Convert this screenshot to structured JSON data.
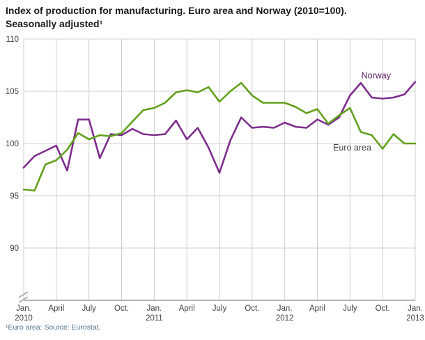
{
  "title": {
    "line1": "Index of production for manufacturing. Euro area and Norway (2010=100).",
    "line2": "Seasonally adjusted¹"
  },
  "footnote": "¹Euro area: Source: Eurostat.",
  "chart_data": {
    "type": "line",
    "title": "Index of production for manufacturing. Euro area and Norway (2010=100). Seasonally adjusted¹",
    "xlabel": "",
    "ylabel": "",
    "ylim": [
      85,
      110
    ],
    "y_ticks": [
      110,
      105,
      100,
      95,
      90
    ],
    "grid": true,
    "axis_break_at_bottom": true,
    "n_points": 37,
    "x_ticks": [
      {
        "month": "Jan.",
        "year": "2010"
      },
      {
        "month": "April",
        "year": ""
      },
      {
        "month": "July",
        "year": ""
      },
      {
        "month": "Oct.",
        "year": ""
      },
      {
        "month": "Jan.",
        "year": "2011"
      },
      {
        "month": "April",
        "year": ""
      },
      {
        "month": "July",
        "year": ""
      },
      {
        "month": "Oct.",
        "year": ""
      },
      {
        "month": "Jan.",
        "year": "2012"
      },
      {
        "month": "April",
        "year": ""
      },
      {
        "month": "July",
        "year": ""
      },
      {
        "month": "Oct.",
        "year": ""
      },
      {
        "month": "Jan.",
        "year": "2013"
      }
    ],
    "colors": {
      "grid": "#cfcfcf",
      "axis": "#8a8a8a",
      "tick_text": "#404040"
    },
    "series": [
      {
        "name": "Norway",
        "color": "#7d2d8c",
        "label": {
          "text": "Norway",
          "xi": 32.4,
          "y": 106.5,
          "color": "#5e2268"
        },
        "values": [
          97.7,
          98.8,
          99.3,
          99.8,
          97.4,
          102.3,
          102.3,
          98.6,
          100.9,
          100.8,
          101.4,
          100.9,
          100.8,
          100.9,
          102.2,
          100.4,
          101.5,
          99.6,
          97.2,
          100.3,
          102.5,
          101.5,
          101.6,
          101.5,
          102.0,
          101.6,
          101.5,
          102.3,
          101.8,
          102.5,
          104.6,
          105.8,
          104.4,
          104.3,
          104.4,
          104.7,
          105.9
        ]
      },
      {
        "name": "Euro area",
        "color": "#62a01c",
        "label": {
          "text": "Euro area",
          "xi": 30.2,
          "y": 99.6,
          "color": "#454545"
        },
        "values": [
          95.6,
          95.5,
          98.0,
          98.4,
          99.4,
          101.0,
          100.4,
          100.8,
          100.7,
          101.0,
          102.1,
          103.2,
          103.4,
          103.9,
          104.9,
          105.1,
          104.9,
          105.4,
          104.0,
          105.0,
          105.8,
          104.6,
          103.9,
          103.9,
          103.9,
          103.5,
          102.9,
          103.3,
          101.9,
          102.7,
          103.4,
          101.1,
          100.8,
          99.5,
          100.9,
          100.0,
          100.0
        ]
      }
    ]
  }
}
